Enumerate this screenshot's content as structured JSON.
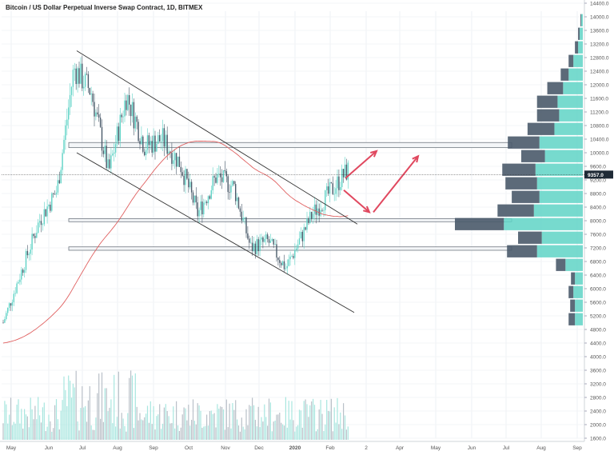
{
  "chart_data": {
    "type": "candlestick",
    "title": "Bitcoin / US Dollar Perpetual Inverse Swap Contract, 1D, BITMEX",
    "price_axis": {
      "min": 1600,
      "max": 14400,
      "step": 400,
      "tick_labels": [
        "14400.0",
        "14000.0",
        "13600.0",
        "13200.0",
        "12800.0",
        "12400.0",
        "12000.0",
        "11600.0",
        "11200.0",
        "10800.0",
        "10400.0",
        "10000.0",
        "9600.0",
        "9200.0",
        "8800.0",
        "8400.0",
        "8000.0",
        "7600.0",
        "7200.0",
        "6800.0",
        "6400.0",
        "6000.0",
        "5600.0",
        "5200.0",
        "4800.0",
        "4400.0",
        "4000.0",
        "3600.0",
        "3200.0",
        "2800.0",
        "2400.0",
        "2000.0",
        "1600.0"
      ]
    },
    "last_price_label": "9357.0",
    "last_price": 9357,
    "time_axis": {
      "labels": [
        "May",
        "Jun",
        "Jul",
        "Aug",
        "Sep",
        "Oct",
        "Nov",
        "Dec",
        "2020",
        "Feb",
        "2",
        "Apr",
        "May",
        "Jun",
        "Jul",
        "Aug",
        "Sep"
      ]
    },
    "price_path": [
      {
        "month": "May",
        "price": 5000
      },
      {
        "month": "May",
        "price": 8000
      },
      {
        "month": "Jun",
        "price": 8900
      },
      {
        "month": "Jun",
        "price": 12500
      },
      {
        "month": "Jul",
        "price": 11800
      },
      {
        "month": "Jul",
        "price": 9400
      },
      {
        "month": "Aug",
        "price": 11700
      },
      {
        "month": "Aug",
        "price": 10200
      },
      {
        "month": "Sep",
        "price": 10400
      },
      {
        "month": "Sep",
        "price": 9700
      },
      {
        "month": "Oct",
        "price": 8200
      },
      {
        "month": "Oct",
        "price": 9300
      },
      {
        "month": "Nov",
        "price": 9000
      },
      {
        "month": "Nov",
        "price": 7200
      },
      {
        "month": "Dec",
        "price": 7400
      },
      {
        "month": "Dec",
        "price": 6600
      },
      {
        "month": "2020",
        "price": 8200
      },
      {
        "month": "Feb",
        "price": 9500
      }
    ],
    "moving_average": {
      "color": "#e06060"
    },
    "candle_colors": {
      "up": "#5fd3c6",
      "down": "#4a5a6a"
    },
    "channel_lines": [
      {
        "from": {
          "month": "Jul",
          "price": 13000
        },
        "to": {
          "month": "Feb",
          "price": 7900
        }
      },
      {
        "from": {
          "month": "Jul",
          "price": 10000
        },
        "to": {
          "month": "Feb",
          "price": 5300
        }
      }
    ],
    "horizontal_zones": [
      {
        "price_from": 10150,
        "price_to": 10300
      },
      {
        "price_from": 7970,
        "price_to": 8060
      },
      {
        "price_from": 7130,
        "price_to": 7230
      }
    ],
    "arrows": [
      {
        "from": {
          "month": "Feb",
          "price": 9200
        },
        "to": {
          "month": "Feb",
          "price": 10050
        },
        "color": "#e0485f"
      },
      {
        "from": {
          "month": "Feb",
          "price": 8900
        },
        "to": {
          "month": "Feb",
          "price": 8200
        },
        "color": "#e0485f"
      },
      {
        "from": {
          "month": "Feb",
          "price": 8250
        },
        "to": {
          "month": "2",
          "price": 9900
        },
        "color": "#e0485f"
      }
    ],
    "volume_profile": {
      "colors": {
        "up": "#5fd3c6",
        "down": "#4a5a6a"
      },
      "rows": [
        {
          "price": 13900,
          "up": 2,
          "down": 1
        },
        {
          "price": 13500,
          "up": 4,
          "down": 2
        },
        {
          "price": 13100,
          "up": 6,
          "down": 4
        },
        {
          "price": 12700,
          "up": 12,
          "down": 6
        },
        {
          "price": 12300,
          "up": 18,
          "down": 10
        },
        {
          "price": 11900,
          "up": 25,
          "down": 20
        },
        {
          "price": 11500,
          "up": 32,
          "down": 26
        },
        {
          "price": 11100,
          "up": 30,
          "down": 28
        },
        {
          "price": 10700,
          "up": 36,
          "down": 34
        },
        {
          "price": 10300,
          "up": 55,
          "down": 40
        },
        {
          "price": 9900,
          "up": 48,
          "down": 30
        },
        {
          "price": 9500,
          "up": 60,
          "down": 42
        },
        {
          "price": 9100,
          "up": 58,
          "down": 40
        },
        {
          "price": 8700,
          "up": 55,
          "down": 35
        },
        {
          "price": 8300,
          "up": 62,
          "down": 46
        },
        {
          "price": 7900,
          "up": 100,
          "down": 62
        },
        {
          "price": 7500,
          "up": 52,
          "down": 30
        },
        {
          "price": 7100,
          "up": 58,
          "down": 38
        },
        {
          "price": 6700,
          "up": 22,
          "down": 12
        },
        {
          "price": 6300,
          "up": 10,
          "down": 5
        },
        {
          "price": 5900,
          "up": 12,
          "down": 6
        },
        {
          "price": 5500,
          "up": 10,
          "down": 6
        },
        {
          "price": 5100,
          "up": 10,
          "down": 8
        }
      ]
    }
  }
}
